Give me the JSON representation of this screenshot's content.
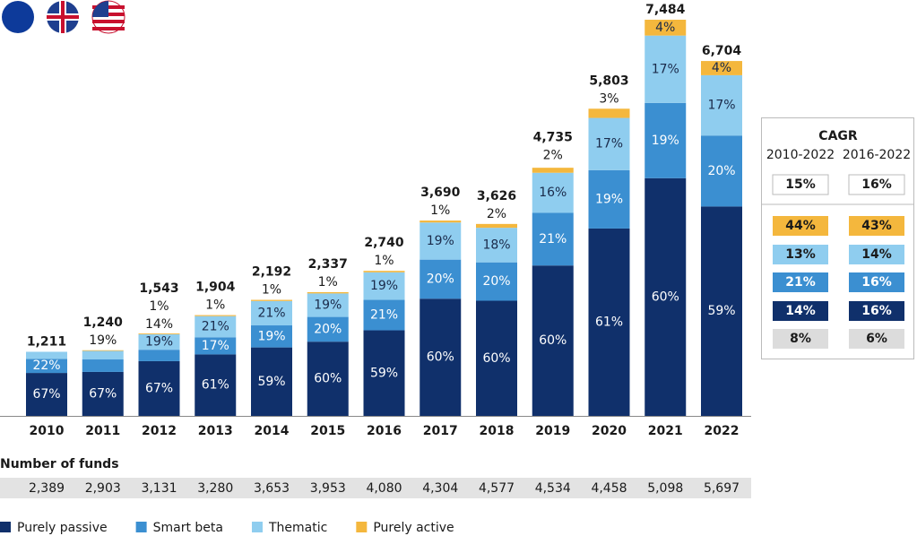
{
  "chart_data": {
    "type": "bar",
    "stacked": true,
    "categories": [
      "2010",
      "2011",
      "2012",
      "2013",
      "2014",
      "2015",
      "2016",
      "2017",
      "2018",
      "2019",
      "2020",
      "2021",
      "2022"
    ],
    "totals": {
      "values": [
        1211,
        1240,
        1543,
        1904,
        2192,
        2337,
        2740,
        3690,
        3626,
        4735,
        5803,
        7484,
        6704
      ],
      "value_labels": [
        "1,211",
        "1,240",
        "1,543",
        "1,904",
        "2,192",
        "2,337",
        "2,740",
        "3,690",
        "3,626",
        "4,735",
        "5,803",
        "7,484",
        "6,704"
      ]
    },
    "series": [
      {
        "name": "Purely passive",
        "color": "#10306b",
        "text_color": "#ffffff",
        "values": [
          67,
          67,
          67,
          61,
          59,
          60,
          59,
          60,
          60,
          60,
          61,
          60,
          59
        ],
        "value_labels": [
          "67%",
          "67%",
          "67%",
          "61%",
          "59%",
          "60%",
          "59%",
          "60%",
          "60%",
          "60%",
          "61%",
          "60%",
          "59%"
        ]
      },
      {
        "name": "Smart beta",
        "color": "#3b8fd1",
        "text_color": "#ffffff",
        "values": [
          22,
          19,
          14,
          17,
          19,
          20,
          21,
          20,
          20,
          21,
          19,
          19,
          20
        ],
        "value_labels": [
          "22%",
          "19%",
          "14%",
          "17%",
          "19%",
          "20%",
          "21%",
          "20%",
          "20%",
          "21%",
          "19%",
          "19%",
          "20%"
        ]
      },
      {
        "name": "Thematic",
        "color": "#8fcdef",
        "text_color": "#1a2a4a",
        "values": [
          11,
          13,
          19,
          21,
          21,
          19,
          19,
          19,
          18,
          16,
          17,
          17,
          17
        ],
        "value_labels": [
          null,
          null,
          "19%",
          "21%",
          "21%",
          "19%",
          "19%",
          "19%",
          "18%",
          "16%",
          "17%",
          "17%",
          "17%"
        ]
      },
      {
        "name": "Purely active",
        "color": "#f4b73d",
        "text_color": "#1a2a4a",
        "values": [
          0,
          1,
          1,
          1,
          1,
          1,
          1,
          1,
          2,
          2,
          3,
          4,
          4
        ],
        "value_labels": [
          null,
          null,
          "1%",
          "1%",
          "1%",
          "1%",
          "1%",
          "1%",
          "2%",
          "2%",
          "3%",
          "4%",
          "4%"
        ]
      }
    ],
    "funds": {
      "label": "Number of funds",
      "values": [
        2389,
        2903,
        3131,
        3280,
        3653,
        3953,
        4080,
        4304,
        4577,
        4534,
        4458,
        5098,
        5697
      ],
      "value_labels": [
        "2,389",
        "2,903",
        "3,131",
        "3,280",
        "3,653",
        "3,953",
        "4,080",
        "4,304",
        "4,577",
        "4,534",
        "4,458",
        "5,098",
        "5,697"
      ]
    }
  },
  "cagr": {
    "title": "CAGR",
    "columns": [
      "2010-2022",
      "2016-2022"
    ],
    "rows": [
      [
        "15%",
        "16%"
      ],
      [
        "44%",
        "43%"
      ],
      [
        "13%",
        "14%"
      ],
      [
        "21%",
        "16%"
      ],
      [
        "14%",
        "16%"
      ],
      [
        "8%",
        "6%"
      ]
    ]
  }
}
